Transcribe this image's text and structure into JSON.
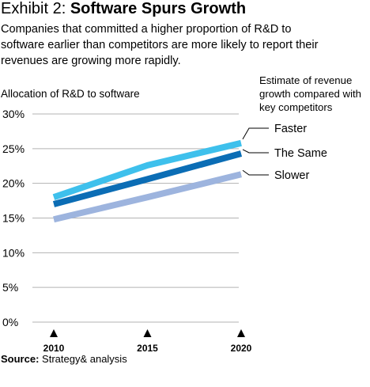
{
  "header": {
    "exhibit": "Exhibit 2:",
    "headline": "Software Spurs Growth",
    "subtitle": "Companies that committed a higher proportion of R&D to software earlier than competitors are more likely to report their revenues are growing more rapidly."
  },
  "footer": {
    "source_label": "Source:",
    "source_text": "Strategy& analysis"
  },
  "chart_data": {
    "type": "line",
    "ylabel": "Allocation of R&D to software",
    "legend_title": "Estimate of revenue growth compared with key competitors",
    "x": [
      2010,
      2015,
      2020
    ],
    "x_tick_labels": [
      "2010",
      "2015",
      "2020"
    ],
    "y_ticks": [
      0,
      5,
      10,
      15,
      20,
      25,
      30
    ],
    "y_tick_labels": [
      "0%",
      "5%",
      "10%",
      "15%",
      "20%",
      "25%",
      "30%"
    ],
    "ylim": [
      0,
      30
    ],
    "grid": true,
    "legend_placement": "right (labels at line ends)",
    "series": [
      {
        "name": "Faster",
        "color": "#3ec0ec",
        "values": [
          18.0,
          22.6,
          25.8
        ]
      },
      {
        "name": "The Same",
        "color": "#0b6db5",
        "values": [
          17.0,
          20.6,
          24.3
        ]
      },
      {
        "name": "Slower",
        "color": "#9db4de",
        "values": [
          14.8,
          18.0,
          21.3
        ]
      }
    ]
  }
}
